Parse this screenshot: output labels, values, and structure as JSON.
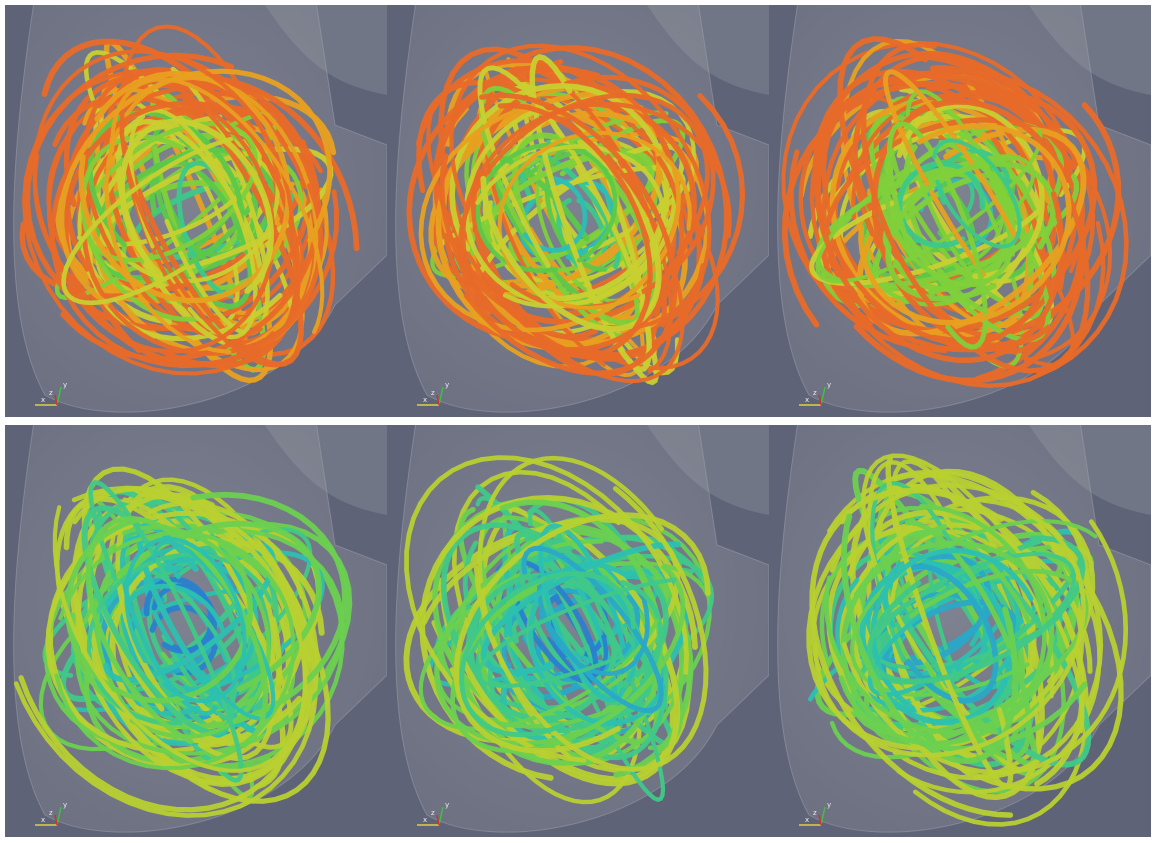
{
  "panels": [
    {
      "axes": [
        "x",
        "y",
        "z"
      ]
    },
    {
      "axes": [
        "x",
        "y",
        "z"
      ]
    },
    {
      "axes": [
        "x",
        "y",
        "z"
      ]
    },
    {
      "axes": [
        "x",
        "y",
        "z"
      ]
    },
    {
      "axes": [
        "x",
        "y",
        "z"
      ]
    },
    {
      "axes": [
        "x",
        "y",
        "z"
      ]
    }
  ]
}
